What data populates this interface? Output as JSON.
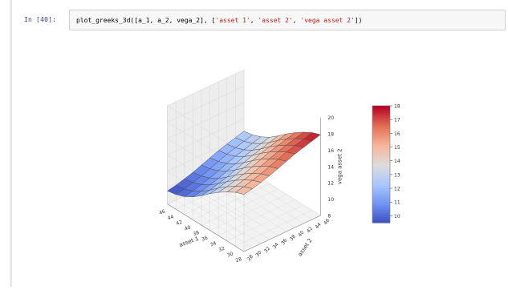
{
  "notebook": {
    "prompt": "In [40]:",
    "code": {
      "func": "plot_greeks_3d([a_1, a_2, vega_2], [",
      "s1": "'asset 1'",
      "s2": "'asset 2'",
      "s3": "'vega asset 2'",
      "close": "])"
    }
  },
  "chart_data": {
    "type": "surface3d",
    "title": "",
    "xlabel": "asset 1",
    "ylabel": "asset 2",
    "zlabel": "vega asset 2",
    "x_ticks": [
      "28",
      "30",
      "32",
      "34",
      "36",
      "38",
      "40",
      "42",
      "44",
      "46"
    ],
    "y_ticks": [
      "28",
      "30",
      "32",
      "34",
      "36",
      "38",
      "40",
      "42",
      "44",
      "46"
    ],
    "z_ticks": [
      "8",
      "10",
      "12",
      "14",
      "16",
      "18",
      "20"
    ],
    "zlim": [
      8,
      20
    ],
    "colorbar_ticks": [
      "10",
      "11",
      "12",
      "13",
      "14",
      "15",
      "16",
      "17",
      "18"
    ],
    "colorbar_range": [
      9.5,
      18
    ],
    "colormap": [
      "#3b4cc0",
      "#7092f3",
      "#aac7fd",
      "#dddcdc",
      "#f6b69a",
      "#e46e56",
      "#b40426"
    ],
    "grid": true,
    "x": [
      28,
      30,
      32,
      34,
      36,
      38,
      40,
      42,
      44,
      46
    ],
    "y": [
      28,
      30,
      32,
      34,
      36,
      38,
      40,
      42,
      44,
      46
    ],
    "z": [
      [
        15.0,
        15.2,
        15.5,
        15.8,
        16.2,
        16.6,
        17.0,
        17.3,
        17.6,
        17.9
      ],
      [
        14.6,
        14.8,
        15.1,
        15.4,
        15.8,
        16.2,
        16.6,
        16.9,
        17.2,
        17.5
      ],
      [
        14.0,
        14.2,
        14.5,
        14.8,
        15.2,
        15.6,
        16.0,
        16.3,
        16.6,
        16.9
      ],
      [
        13.3,
        13.5,
        13.8,
        14.1,
        14.5,
        14.9,
        15.3,
        15.6,
        15.9,
        16.2
      ],
      [
        12.5,
        12.7,
        13.0,
        13.3,
        13.7,
        14.1,
        14.5,
        14.8,
        15.1,
        15.4
      ],
      [
        11.6,
        11.8,
        12.1,
        12.4,
        12.8,
        13.2,
        13.6,
        13.9,
        14.2,
        14.5
      ],
      [
        10.8,
        11.0,
        11.3,
        11.6,
        12.0,
        12.4,
        12.8,
        13.1,
        13.4,
        13.7
      ],
      [
        10.2,
        10.4,
        10.7,
        11.0,
        11.4,
        11.8,
        12.2,
        12.5,
        12.8,
        13.1
      ],
      [
        9.8,
        10.0,
        10.3,
        10.6,
        11.0,
        11.4,
        11.8,
        12.1,
        12.4,
        12.7
      ],
      [
        9.6,
        9.8,
        10.1,
        10.4,
        10.8,
        11.2,
        11.6,
        11.9,
        12.2,
        12.5
      ]
    ]
  }
}
